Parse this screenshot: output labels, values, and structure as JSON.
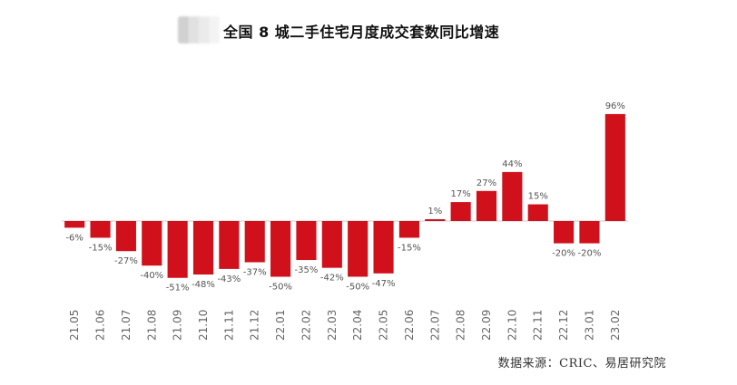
{
  "title": "全国 8 城二手住宅月度成交套数同比增速",
  "source": "数据来源：CRIC、易居研究院",
  "colors": {
    "bar": "#d0111b",
    "label": "#555555",
    "axis": "#cfcfcf"
  },
  "chart_data": {
    "type": "bar",
    "title": "全国 8 城二手住宅月度成交套数同比增速",
    "categories": [
      "21.05",
      "21.06",
      "21.07",
      "21.08",
      "21.09",
      "21.10",
      "21.11",
      "21.12",
      "22.01",
      "22.02",
      "22.03",
      "22.04",
      "22.05",
      "22.06",
      "22.07",
      "22.08",
      "22.09",
      "22.10",
      "22.11",
      "22.12",
      "23.01",
      "23.02"
    ],
    "values": [
      -6,
      -15,
      -27,
      -40,
      -51,
      -48,
      -43,
      -37,
      -50,
      -35,
      -42,
      -50,
      -47,
      -15,
      1,
      17,
      27,
      44,
      15,
      -20,
      -20,
      96
    ],
    "value_labels": [
      "-6%",
      "-15%",
      "-27%",
      "-40%",
      "-51%",
      "-48%",
      "-43%",
      "-37%",
      "-50%",
      "-35%",
      "-42%",
      "-50%",
      "-47%",
      "-15%",
      "1%",
      "17%",
      "27%",
      "44%",
      "15%",
      "-20%",
      "-20%",
      "96%"
    ],
    "unit": "%",
    "ylim": [
      -60,
      100
    ],
    "grid": false,
    "legend": "none",
    "xlabel": "",
    "ylabel": ""
  }
}
